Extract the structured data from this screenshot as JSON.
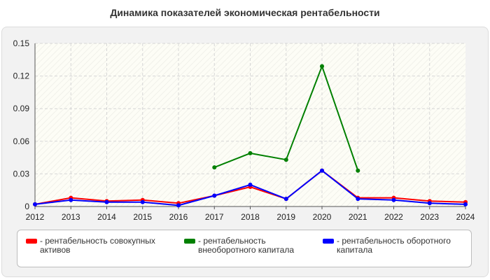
{
  "title": "Динамика показателей экономическая рентабельности",
  "chart_data": {
    "type": "line",
    "title": "Динамика показателей экономическая рентабельности",
    "xlabel": "",
    "ylabel": "",
    "x": [
      "2012",
      "2013",
      "2014",
      "2015",
      "2016",
      "2017",
      "2018",
      "2019",
      "2020",
      "2021",
      "2022",
      "2023",
      "2024"
    ],
    "ylim": [
      0,
      0.15
    ],
    "yticks": [
      "0",
      "0.03",
      "0.06",
      "0.09",
      "0.12",
      "0.15"
    ],
    "grid": true,
    "legend_position": "bottom",
    "series": [
      {
        "name": "- рентабельность совокупных активов",
        "color": "#ff0000",
        "values": [
          0.002,
          0.008,
          0.005,
          0.006,
          0.003,
          0.01,
          0.018,
          0.007,
          0.033,
          0.008,
          0.008,
          0.005,
          0.004
        ]
      },
      {
        "name": "- рентабельность внеоборотного капитала",
        "color": "#008000",
        "values": [
          null,
          null,
          null,
          null,
          null,
          0.036,
          0.049,
          0.043,
          0.129,
          0.033,
          null,
          null,
          null
        ]
      },
      {
        "name": "- рентабельность оборотного капитала",
        "color": "#0000ff",
        "values": [
          0.002,
          0.006,
          0.004,
          0.004,
          0.001,
          0.01,
          0.02,
          0.007,
          0.033,
          0.007,
          0.006,
          0.003,
          0.002
        ]
      }
    ]
  }
}
